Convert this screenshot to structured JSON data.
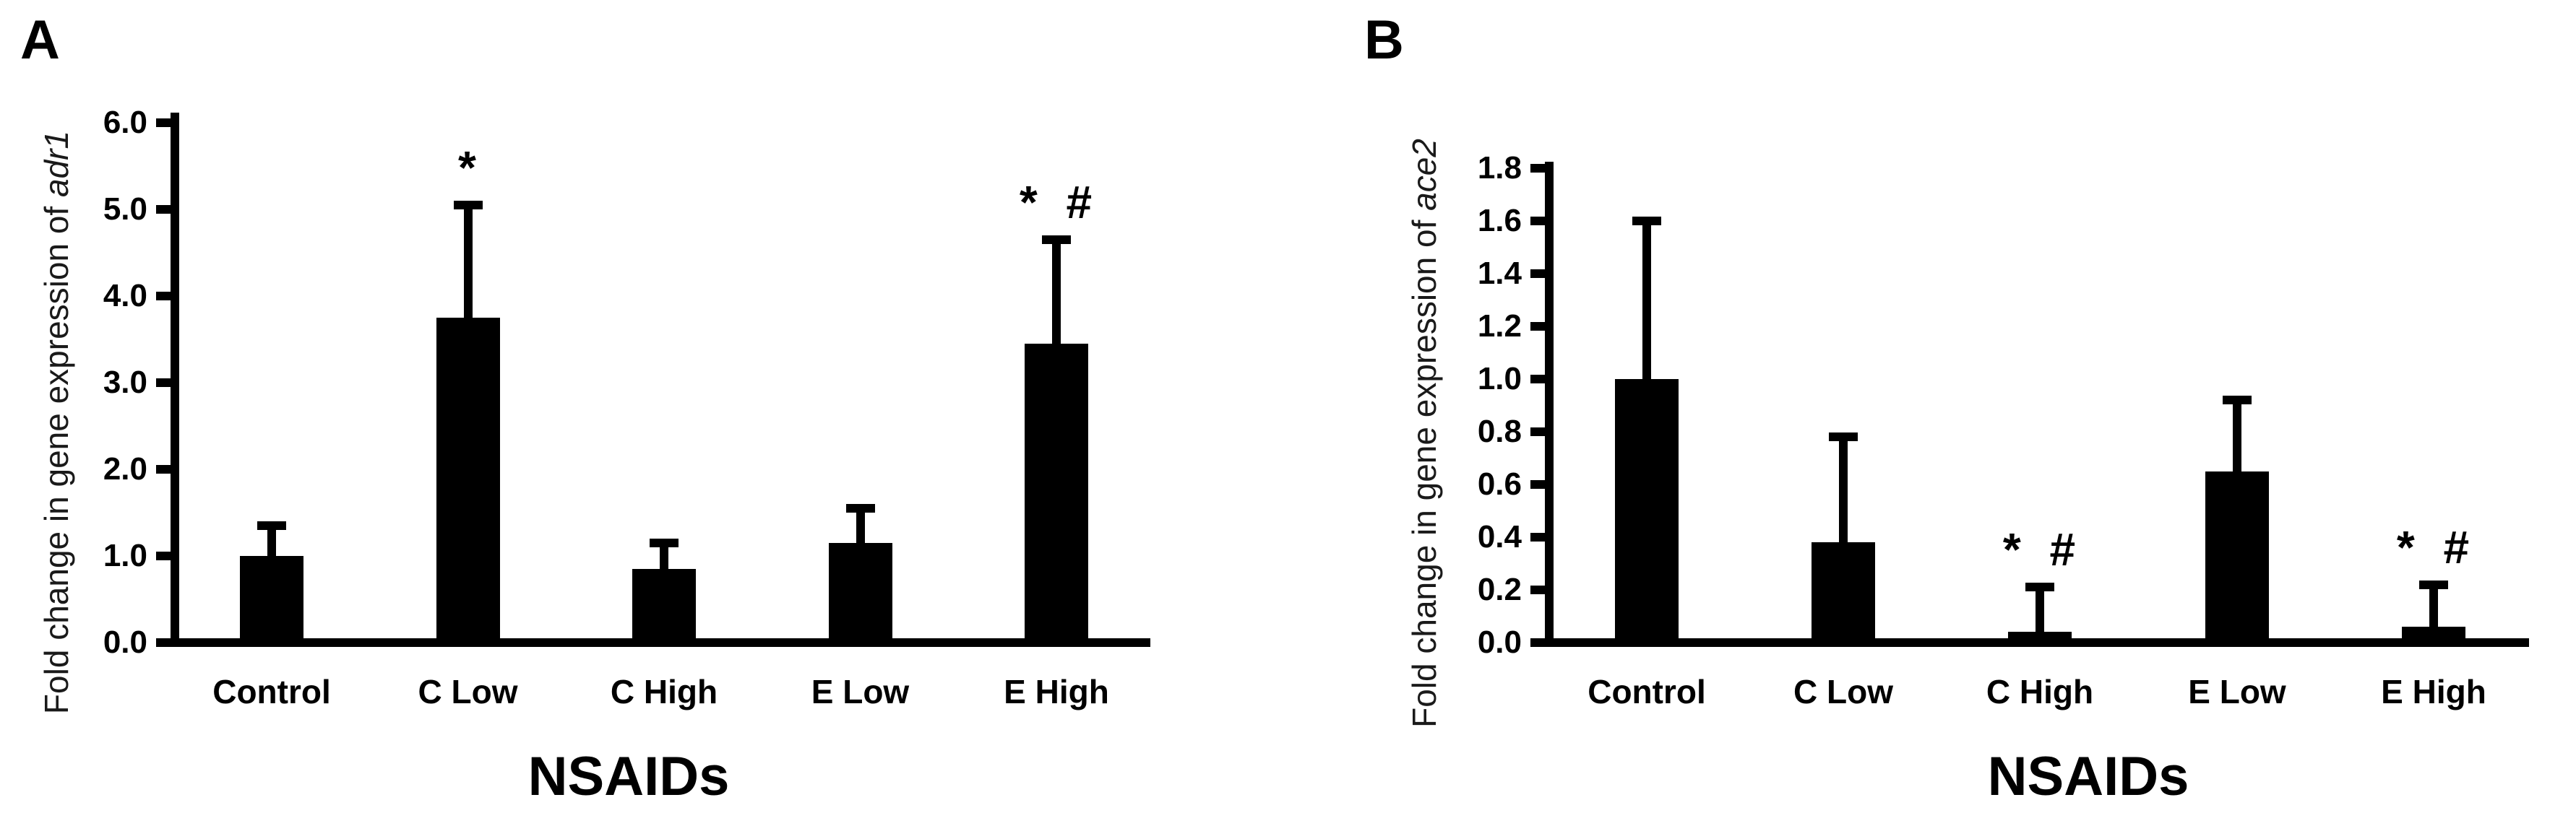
{
  "figure": {
    "background_color": "#ffffff",
    "ink_color": "#000000",
    "label_color": "#1a1a1a"
  },
  "panels": [
    {
      "letter": "A",
      "y_label_prefix": "Fold change in gene expression of ",
      "y_label_gene": "adr1",
      "x_title": "NSAIDs"
    },
    {
      "letter": "B",
      "y_label_prefix": "Fold change in gene expression of ",
      "y_label_gene": "ace2",
      "x_title": "NSAIDs"
    }
  ],
  "chart_data": [
    {
      "type": "bar",
      "title": "",
      "xlabel": "NSAIDs",
      "ylabel": "Fold change in gene expression of adr1",
      "ylabel_italic_word": "adr1",
      "categories": [
        "Control",
        "C Low",
        "C High",
        "E Low",
        "E High"
      ],
      "values": [
        1.0,
        3.75,
        0.85,
        1.15,
        3.45
      ],
      "error_upper": [
        1.35,
        5.05,
        1.15,
        1.55,
        4.65
      ],
      "annotations": [
        "",
        "*",
        "",
        "",
        "* #"
      ],
      "bar_color": "#000000",
      "ylim": [
        0,
        6
      ],
      "ytick_labels": [
        "0.0",
        "1.0",
        "2.0",
        "3.0",
        "4.0",
        "5.0",
        "6.0"
      ],
      "grid": false,
      "legend": false
    },
    {
      "type": "bar",
      "title": "",
      "xlabel": "NSAIDs",
      "ylabel": "Fold change in gene expression of ace2",
      "ylabel_italic_word": "ace2",
      "categories": [
        "Control",
        "C Low",
        "C High",
        "E Low",
        "E High"
      ],
      "values": [
        1.0,
        0.38,
        0.04,
        0.65,
        0.06
      ],
      "error_upper": [
        1.6,
        0.78,
        0.21,
        0.92,
        0.22
      ],
      "annotations": [
        "",
        "",
        "* #",
        "",
        "* #"
      ],
      "bar_color": "#000000",
      "ylim": [
        0,
        1.8
      ],
      "ytick_labels": [
        "0.0",
        "0.2",
        "0.4",
        "0.6",
        "0.8",
        "1.0",
        "1.2",
        "1.4",
        "1.6",
        "1.8"
      ],
      "grid": false,
      "legend": false
    }
  ]
}
